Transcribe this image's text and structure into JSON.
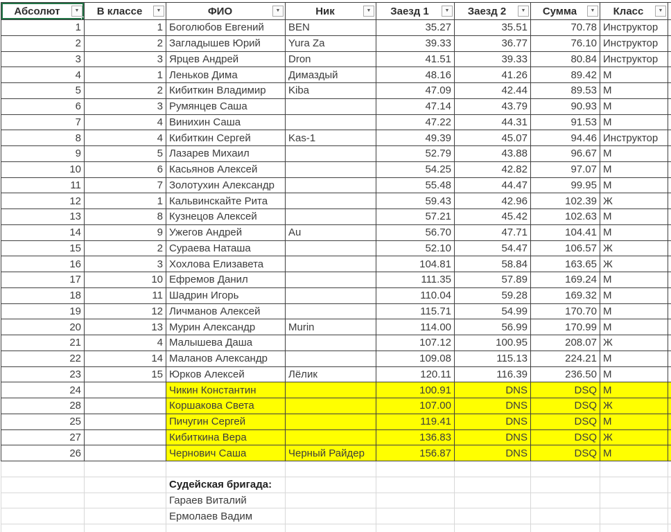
{
  "table": {
    "columns": [
      {
        "label": "Абсолют"
      },
      {
        "label": "В классе"
      },
      {
        "label": "ФИО"
      },
      {
        "label": "Ник"
      },
      {
        "label": "Заезд 1"
      },
      {
        "label": "Заезд 2"
      },
      {
        "label": "Сумма"
      },
      {
        "label": "Класс"
      }
    ],
    "rows": [
      {
        "abs": "1",
        "in_class": "1",
        "name": "Боголюбов Евгений",
        "nick": "BEN",
        "r1": "35.27",
        "r2": "35.51",
        "sum": "70.78",
        "cls": "Инструктор",
        "hl": false
      },
      {
        "abs": "2",
        "in_class": "2",
        "name": "Загладышев Юрий",
        "nick": "Yura Za",
        "r1": "39.33",
        "r2": "36.77",
        "sum": "76.10",
        "cls": "Инструктор",
        "hl": false
      },
      {
        "abs": "3",
        "in_class": "3",
        "name": "Ярцев Андрей",
        "nick": "Dron",
        "r1": "41.51",
        "r2": "39.33",
        "sum": "80.84",
        "cls": "Инструктор",
        "hl": false
      },
      {
        "abs": "4",
        "in_class": "1",
        "name": "Леньков Дима",
        "nick": "Димаздый",
        "r1": "48.16",
        "r2": "41.26",
        "sum": "89.42",
        "cls": "М",
        "hl": false
      },
      {
        "abs": "5",
        "in_class": "2",
        "name": "Кибиткин Владимир",
        "nick": "Kiba",
        "r1": "47.09",
        "r2": "42.44",
        "sum": "89.53",
        "cls": "М",
        "hl": false
      },
      {
        "abs": "6",
        "in_class": "3",
        "name": "Румянцев Саша",
        "nick": "",
        "r1": "47.14",
        "r2": "43.79",
        "sum": "90.93",
        "cls": "М",
        "hl": false
      },
      {
        "abs": "7",
        "in_class": "4",
        "name": "Винихин Саша",
        "nick": "",
        "r1": "47.22",
        "r2": "44.31",
        "sum": "91.53",
        "cls": "М",
        "hl": false
      },
      {
        "abs": "8",
        "in_class": "4",
        "name": "Кибиткин Сергей",
        "nick": "Kas-1",
        "r1": "49.39",
        "r2": "45.07",
        "sum": "94.46",
        "cls": "Инструктор",
        "hl": false
      },
      {
        "abs": "9",
        "in_class": "5",
        "name": "Лазарев Михаил",
        "nick": "",
        "r1": "52.79",
        "r2": "43.88",
        "sum": "96.67",
        "cls": "М",
        "hl": false
      },
      {
        "abs": "10",
        "in_class": "6",
        "name": "Касьянов Алексей",
        "nick": "",
        "r1": "54.25",
        "r2": "42.82",
        "sum": "97.07",
        "cls": "М",
        "hl": false
      },
      {
        "abs": "11",
        "in_class": "7",
        "name": "Золотухин Александр",
        "nick": "",
        "r1": "55.48",
        "r2": "44.47",
        "sum": "99.95",
        "cls": "М",
        "hl": false
      },
      {
        "abs": "12",
        "in_class": "1",
        "name": "Кальвинскайте Рита",
        "nick": "",
        "r1": "59.43",
        "r2": "42.96",
        "sum": "102.39",
        "cls": "Ж",
        "hl": false
      },
      {
        "abs": "13",
        "in_class": "8",
        "name": "Кузнецов Алексей",
        "nick": "",
        "r1": "57.21",
        "r2": "45.42",
        "sum": "102.63",
        "cls": "М",
        "hl": false
      },
      {
        "abs": "14",
        "in_class": "9",
        "name": "Ужегов Андрей",
        "nick": "Au",
        "r1": "56.70",
        "r2": "47.71",
        "sum": "104.41",
        "cls": "М",
        "hl": false
      },
      {
        "abs": "15",
        "in_class": "2",
        "name": "Сураева Наташа",
        "nick": "",
        "r1": "52.10",
        "r2": "54.47",
        "sum": "106.57",
        "cls": "Ж",
        "hl": false
      },
      {
        "abs": "16",
        "in_class": "3",
        "name": "Хохлова Елизавета",
        "nick": "",
        "r1": "104.81",
        "r2": "58.84",
        "sum": "163.65",
        "cls": "Ж",
        "hl": false
      },
      {
        "abs": "17",
        "in_class": "10",
        "name": "Ефремов Данил",
        "nick": "",
        "r1": "111.35",
        "r2": "57.89",
        "sum": "169.24",
        "cls": "М",
        "hl": false
      },
      {
        "abs": "18",
        "in_class": "11",
        "name": "Шадрин Игорь",
        "nick": "",
        "r1": "110.04",
        "r2": "59.28",
        "sum": "169.32",
        "cls": "М",
        "hl": false
      },
      {
        "abs": "19",
        "in_class": "12",
        "name": "Личманов Алексей",
        "nick": "",
        "r1": "115.71",
        "r2": "54.99",
        "sum": "170.70",
        "cls": "М",
        "hl": false
      },
      {
        "abs": "20",
        "in_class": "13",
        "name": "Мурин Александр",
        "nick": "Murin",
        "r1": "114.00",
        "r2": "56.99",
        "sum": "170.99",
        "cls": "М",
        "hl": false
      },
      {
        "abs": "21",
        "in_class": "4",
        "name": "Малышева Даша",
        "nick": "",
        "r1": "107.12",
        "r2": "100.95",
        "sum": "208.07",
        "cls": "Ж",
        "hl": false
      },
      {
        "abs": "22",
        "in_class": "14",
        "name": "Маланов Александр",
        "nick": "",
        "r1": "109.08",
        "r2": "115.13",
        "sum": "224.21",
        "cls": "М",
        "hl": false
      },
      {
        "abs": "23",
        "in_class": "15",
        "name": "Юрков Алексей",
        "nick": "Лёлик",
        "r1": "120.11",
        "r2": "116.39",
        "sum": "236.50",
        "cls": "М",
        "hl": false
      },
      {
        "abs": "24",
        "in_class": "",
        "name": "Чикин Константин",
        "nick": "",
        "r1": "100.91",
        "r2": "DNS",
        "sum": "DSQ",
        "cls": "М",
        "hl": true
      },
      {
        "abs": "28",
        "in_class": "",
        "name": "Коршакова Света",
        "nick": "",
        "r1": "107.00",
        "r2": "DNS",
        "sum": "DSQ",
        "cls": "Ж",
        "hl": true
      },
      {
        "abs": "25",
        "in_class": "",
        "name": "Пичугин Сергей",
        "nick": "",
        "r1": "119.41",
        "r2": "DNS",
        "sum": "DSQ",
        "cls": "М",
        "hl": true
      },
      {
        "abs": "27",
        "in_class": "",
        "name": "Кибиткина Вера",
        "nick": "",
        "r1": "136.83",
        "r2": "DNS",
        "sum": "DSQ",
        "cls": "Ж",
        "hl": true
      },
      {
        "abs": "26",
        "in_class": "",
        "name": "Чернович Саша",
        "nick": "Черный Райдер",
        "r1": "156.87",
        "r2": "DNS",
        "sum": "DSQ",
        "cls": "М",
        "hl": true
      }
    ]
  },
  "footer": {
    "rows": [
      {
        "text": "",
        "bold": false
      },
      {
        "text": "Судейская бригада:",
        "bold": true
      },
      {
        "text": "Гараев Виталий",
        "bold": false
      },
      {
        "text": "Ермолаев Вадим",
        "bold": false
      },
      {
        "text": "",
        "bold": false
      },
      {
        "text": "",
        "bold": false
      }
    ]
  },
  "icons": {
    "filter_arrow": "▼"
  },
  "colors": {
    "highlight": "#ffff00",
    "selection_green": "#217346",
    "table_border": "#404040",
    "gridline": "#d8d8d8",
    "text": "#3c3c3c"
  }
}
